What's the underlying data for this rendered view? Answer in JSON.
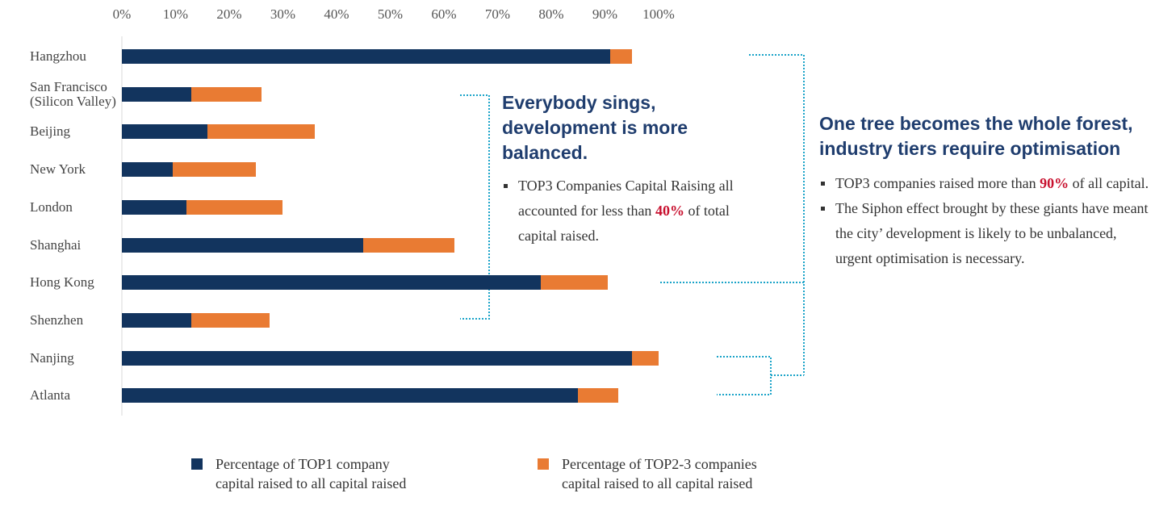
{
  "chart_data": {
    "type": "stacked_barh",
    "categories": [
      "Hangzhou",
      "San Francisco\n(Silicon Valley)",
      "Beijing",
      "New York",
      "London",
      "Shanghai",
      "Hong Kong",
      "Shenzhen",
      "Nanjing",
      "Atlanta"
    ],
    "series": [
      {
        "name": "Percentage of TOP1 company\ncapital raised to  all capital raised",
        "color": "#12345e",
        "values": [
          91,
          13,
          16,
          9.5,
          12,
          45,
          78,
          13,
          95,
          85
        ]
      },
      {
        "name": "Percentage of TOP2-3 companies\ncapital raised to  all capital raised",
        "color": "#e97b33",
        "values": [
          4,
          13,
          20,
          15.5,
          18,
          17,
          12.5,
          14.5,
          5,
          7.5
        ]
      }
    ],
    "xlim": [
      0,
      100
    ],
    "xticks": [
      {
        "value": 0,
        "label": "0%"
      },
      {
        "value": 10,
        "label": "10%"
      },
      {
        "value": 20,
        "label": "20%"
      },
      {
        "value": 30,
        "label": "30%"
      },
      {
        "value": 40,
        "label": "40%"
      },
      {
        "value": 50,
        "label": "50%"
      },
      {
        "value": 60,
        "label": "60%"
      },
      {
        "value": 70,
        "label": "70%"
      },
      {
        "value": 80,
        "label": "80%"
      },
      {
        "value": 90,
        "label": "90%"
      },
      {
        "value": 100,
        "label": "100%"
      }
    ],
    "annotations": [
      {
        "heading": "Everybody sings, development is more balanced.",
        "bullets": [
          {
            "before": "TOP3 Companies Capital  Raising all accounted for less than ",
            "highlight": "40%",
            "after": " of total capital raised."
          }
        ]
      },
      {
        "heading": "One tree becomes the whole forest, industry tiers require optimisation",
        "bullets": [
          {
            "before": "TOP3 companies raised more than ",
            "highlight": "90%",
            "after": " of all capital."
          },
          {
            "before": "The Siphon effect brought by these giants have meant the city’ development is likely to be unbalanced, urgent optimisation is necessary."
          }
        ]
      }
    ]
  }
}
